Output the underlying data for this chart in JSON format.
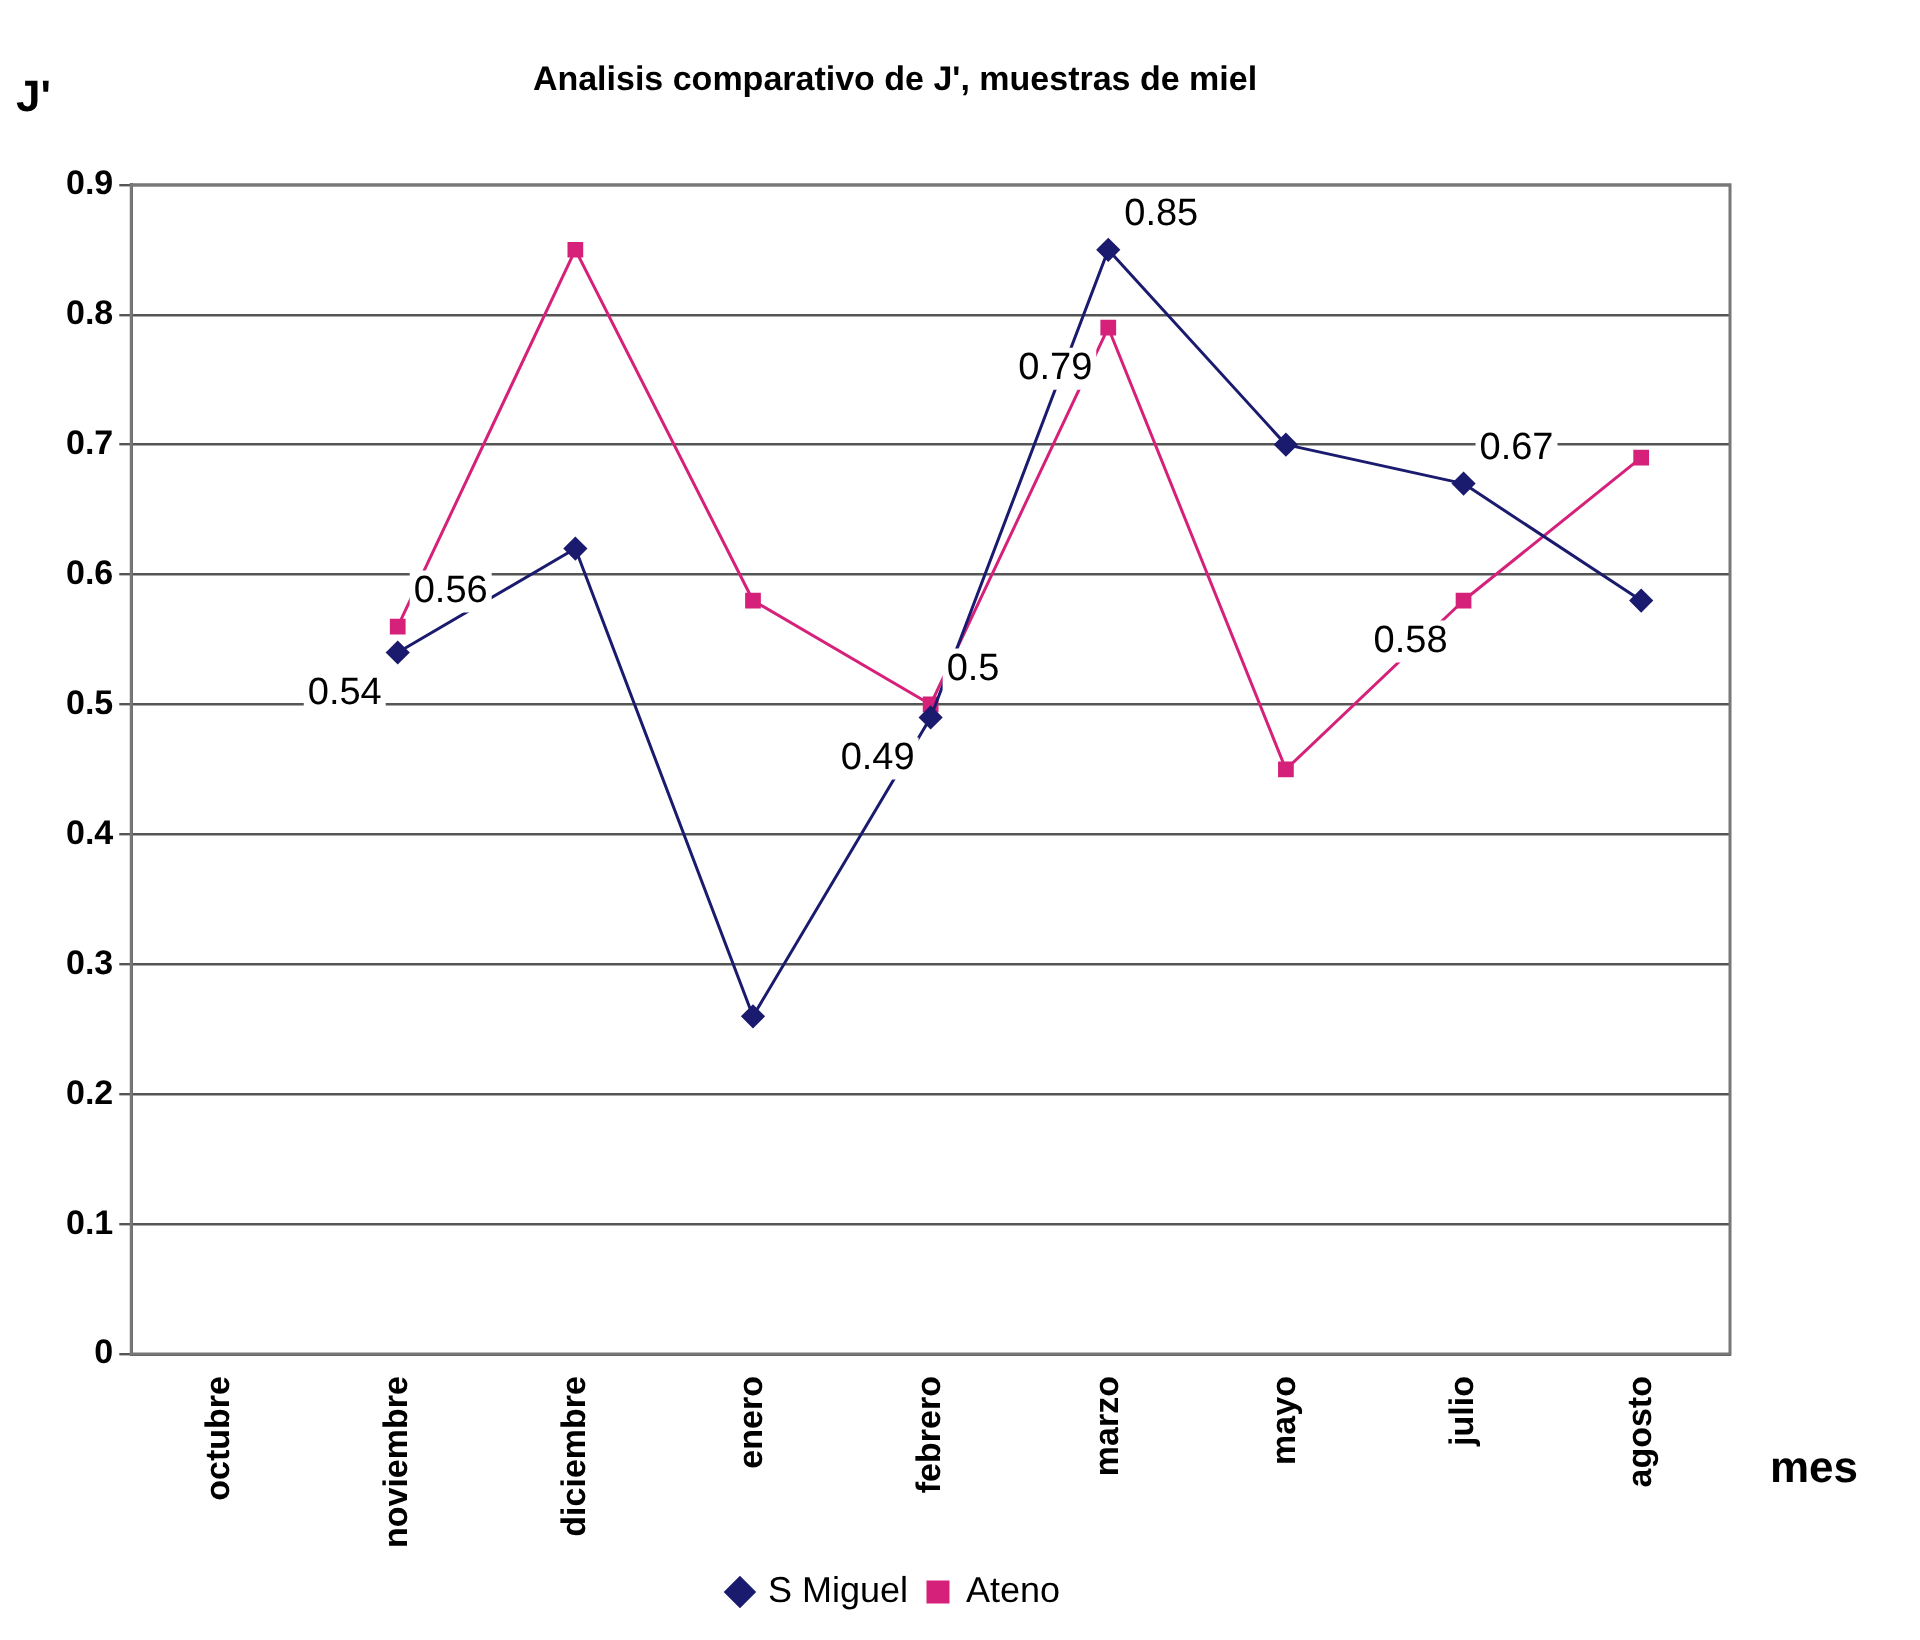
{
  "chart_data": {
    "type": "line",
    "title": "Analisis comparativo de J', muestras de miel",
    "xlabel": "mes",
    "ylabel": "J'",
    "categories": [
      "octubre",
      "noviembre",
      "diciembre",
      "enero",
      "febrero",
      "marzo",
      "mayo",
      "julio",
      "agosto"
    ],
    "series": [
      {
        "name": "S Miguel",
        "color": "#1a1a6e",
        "marker": "diamond",
        "values": [
          null,
          0.54,
          0.62,
          0.26,
          0.49,
          0.85,
          0.7,
          0.67,
          0.58
        ],
        "value_labels": [
          null,
          "0.54",
          null,
          null,
          "0.49",
          "0.85",
          null,
          "0.67",
          null
        ]
      },
      {
        "name": "Ateno",
        "color": "#d6217a",
        "marker": "square",
        "values": [
          null,
          0.56,
          0.85,
          0.58,
          0.5,
          0.79,
          0.45,
          0.58,
          0.69
        ],
        "value_labels": [
          null,
          "0.56",
          null,
          null,
          "0.5",
          "0.79",
          null,
          "0.58",
          null
        ]
      }
    ],
    "ylim": [
      0,
      0.9
    ],
    "yticks": [
      0,
      0.1,
      0.2,
      0.3,
      0.4,
      0.5,
      0.6,
      0.7,
      0.8,
      0.9
    ],
    "grid": "y",
    "legend": "bottom",
    "line_style": "solid"
  }
}
